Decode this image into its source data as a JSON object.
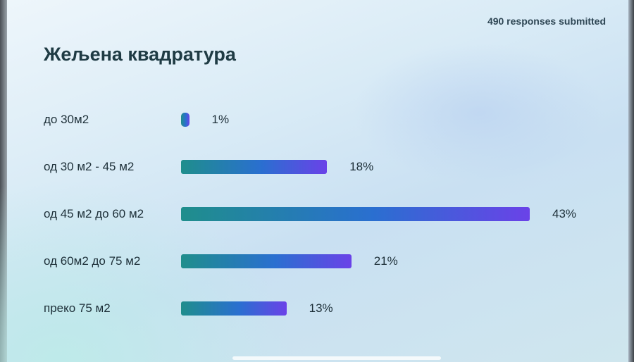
{
  "header": {
    "responses": "490 responses submitted"
  },
  "chart_data": {
    "type": "bar",
    "orientation": "horizontal",
    "title": "Жељена квадратура",
    "categories": [
      "до 30м2",
      "од 30 м2 - 45 м2",
      "од 45 м2 до 60 м2",
      "од 60м2 до 75 м2",
      "преко 75 м2"
    ],
    "values": [
      1,
      18,
      43,
      21,
      13
    ],
    "value_labels": [
      "1%",
      "18%",
      "43%",
      "21%",
      "13%"
    ],
    "unit": "%",
    "xlim": [
      0,
      43
    ],
    "grid": false,
    "bar_gradient": [
      "#1f8e8c",
      "#2a6fd0",
      "#6a42e8"
    ]
  }
}
